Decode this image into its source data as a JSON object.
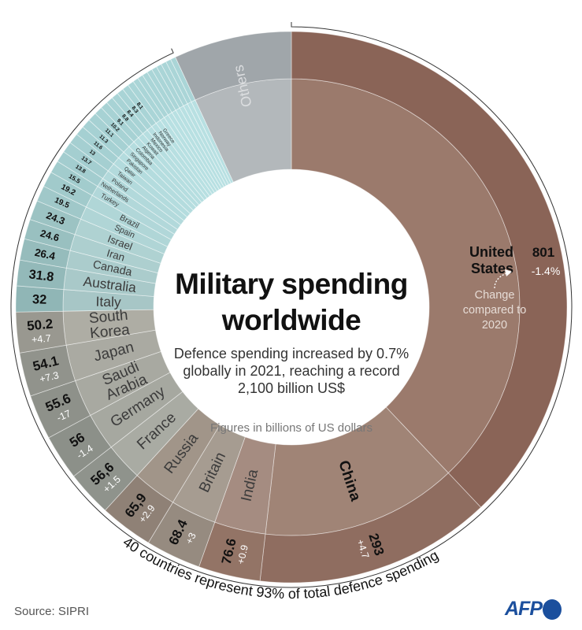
{
  "title_line1": "Military spending",
  "title_line2": "worldwide",
  "subtitle": "Defence spending increased by 0.7% globally in 2021, reaching a record 2,100 billion US$",
  "note": "Figures in billions of US dollars",
  "change_note": "Change compared to 2020",
  "arc_caption": "40 countries represent 93% of total defence spending",
  "source": "Source: SIPRI",
  "logo": "AFP",
  "colors": {
    "logo": "#1b4f9d",
    "teal_inner": "#b3dcdf",
    "teal_outer": "#a5d1d4"
  },
  "chart_data": {
    "type": "sunburst",
    "unit": "billions of US dollars",
    "slices": [
      {
        "name": "United States",
        "value": 801,
        "label": "801",
        "change": "-1.4%",
        "inner": "#9b7a6c",
        "outer": "#8a6457"
      },
      {
        "name": "China",
        "value": 293,
        "label": "293",
        "change": "+4.7",
        "inner": "#a08476",
        "outer": "#8f6d60"
      },
      {
        "name": "India",
        "value": 76.6,
        "label": "76.6",
        "change": "+0.9",
        "inner": "#a58c81",
        "outer": "#937466"
      },
      {
        "name": "Britain",
        "value": 68.4,
        "label": "68.4",
        "change": "+3",
        "inner": "#a69c91",
        "outer": "#968b80"
      },
      {
        "name": "Russia",
        "value": 65.9,
        "label": "65,9",
        "change": "+2.9",
        "inner": "#a19589",
        "outer": "#8f8176"
      },
      {
        "name": "France",
        "value": 56.6,
        "label": "56,6",
        "change": "+1.5",
        "inner": "#a9aba3",
        "outer": "#8f938c"
      },
      {
        "name": "Germany",
        "value": 56,
        "label": "56",
        "change": "-1.4",
        "inner": "#a6a8a0",
        "outer": "#8c9089"
      },
      {
        "name": "Saudi Arabia",
        "value": 55.6,
        "label": "55.6",
        "change": "-17",
        "inner": "#a8a9a1",
        "outer": "#8e918a"
      },
      {
        "name": "Japan",
        "value": 54.1,
        "label": "54.1",
        "change": "+7.3",
        "inner": "#aaaaa2",
        "outer": "#91938c"
      },
      {
        "name": "South Korea",
        "value": 50.2,
        "label": "50.2",
        "change": "+4.7",
        "inner": "#aeada4",
        "outer": "#999890"
      },
      {
        "name": "Italy",
        "value": 32,
        "label": "32",
        "change": "",
        "inner": "#a7c6c6",
        "outer": "#90b6b6"
      },
      {
        "name": "Australia",
        "value": 31.8,
        "label": "31.8",
        "change": "",
        "inner": "#a9c9c9",
        "outer": "#93b9b9"
      },
      {
        "name": "Canada",
        "value": 26.4,
        "label": "26.4",
        "change": "",
        "inner": "#abcccc",
        "outer": "#96bcbc"
      },
      {
        "name": "Iran",
        "value": 24.6,
        "label": "24.6",
        "change": "",
        "inner": "#adcfcf",
        "outer": "#99c0c0"
      },
      {
        "name": "Israel",
        "value": 24.3,
        "label": "24.3",
        "change": "",
        "inner": "#afd2d2",
        "outer": "#9cc3c3"
      },
      {
        "name": "Spain",
        "value": 19.5,
        "label": "19.5",
        "change": "",
        "inner": "#b0d5d6",
        "outer": "#a0c8c9"
      },
      {
        "name": "Brazil",
        "value": 19.2,
        "label": "19.2",
        "change": "",
        "inner": "#b0d6d7",
        "outer": "#a1cacb"
      },
      {
        "name": "Turkey",
        "value": 15.5,
        "label": "15.5",
        "change": "",
        "inner": "#b1d7d9",
        "outer": "#a2cccd"
      },
      {
        "name": "Netherlands",
        "value": 13.8,
        "label": "13.8",
        "change": "",
        "inner": "#b2d8da",
        "outer": "#a3cdcf"
      },
      {
        "name": "Poland",
        "value": 13.7,
        "label": "13.7",
        "change": "",
        "inner": "#b2d9db",
        "outer": "#a4ced0"
      },
      {
        "name": "Taiwan",
        "value": 13,
        "label": "13",
        "change": "",
        "inner": "#b3dadc",
        "outer": "#a5cfd1"
      },
      {
        "name": "Qatar",
        "value": 11.6,
        "label": "11.6",
        "change": "",
        "inner": "#b3dbdd",
        "outer": "#a5d0d2"
      },
      {
        "name": "Pakistan",
        "value": 11.3,
        "label": "11.3",
        "change": "",
        "inner": "#b4dcde",
        "outer": "#a6d1d3"
      },
      {
        "name": "Singapore",
        "value": 11.1,
        "label": "11.1",
        "change": "",
        "inner": "#b4dcde",
        "outer": "#a6d1d3"
      },
      {
        "name": "Colombia",
        "value": 10.2,
        "label": "10.2",
        "change": "",
        "inner": "#b5dddf",
        "outer": "#a7d2d4"
      },
      {
        "name": "Algeria",
        "value": 9.1,
        "label": "9.1",
        "change": "",
        "inner": "#b5dddf",
        "outer": "#a7d2d4"
      },
      {
        "name": "Kuwait",
        "value": 8.8,
        "label": "8.8",
        "change": "",
        "inner": "#b6dee0",
        "outer": "#a8d3d5"
      },
      {
        "name": "Mexico",
        "value": 8.4,
        "label": "8.4",
        "change": "",
        "inner": "#b6dee0",
        "outer": "#a8d3d5"
      },
      {
        "name": "Indonesia",
        "value": 8.3,
        "label": "8.3",
        "change": "",
        "inner": "#b7dfe1",
        "outer": "#a9d4d6"
      },
      {
        "name": "Norway",
        "value": 8.1,
        "label": "8.1",
        "change": "",
        "inner": "#b7dfe1",
        "outer": "#a9d4d6"
      },
      {
        "name": "Greece",
        "value": 7.7,
        "label": "",
        "change": "",
        "inner": "#b8e0e2",
        "outer": "#aad5d7"
      },
      {
        "name": "",
        "value": 6.9,
        "label": "",
        "change": "",
        "inner": "#b8e0e2",
        "outer": "#aad5d7"
      },
      {
        "name": "",
        "value": 6.8,
        "label": "",
        "change": "",
        "inner": "#b8e0e2",
        "outer": "#aad5d7"
      },
      {
        "name": "",
        "value": 6.7,
        "label": "",
        "change": "",
        "inner": "#b8e0e2",
        "outer": "#aad5d7"
      },
      {
        "name": "",
        "value": 6.6,
        "label": "",
        "change": "",
        "inner": "#b8e0e2",
        "outer": "#aad5d7"
      },
      {
        "name": "",
        "value": 6.6,
        "label": "",
        "change": "",
        "inner": "#b8e0e2",
        "outer": "#aad5d7"
      },
      {
        "name": "",
        "value": 6.5,
        "label": "",
        "change": "",
        "inner": "#b8e0e2",
        "outer": "#aad5d7"
      },
      {
        "name": "",
        "value": 6.5,
        "label": "",
        "change": "",
        "inner": "#b8e0e2",
        "outer": "#aad5d7"
      },
      {
        "name": "",
        "value": 6.4,
        "label": "",
        "change": "",
        "inner": "#b8e0e2",
        "outer": "#aad5d7"
      },
      {
        "name": "",
        "value": 6.4,
        "label": "",
        "change": "",
        "inner": "#b8e0e2",
        "outer": "#aad5d7"
      },
      {
        "name": "Others",
        "value": 146,
        "label": "",
        "change": "",
        "inner": "#b3b8bb",
        "outer": "#a0a6aa"
      }
    ]
  }
}
